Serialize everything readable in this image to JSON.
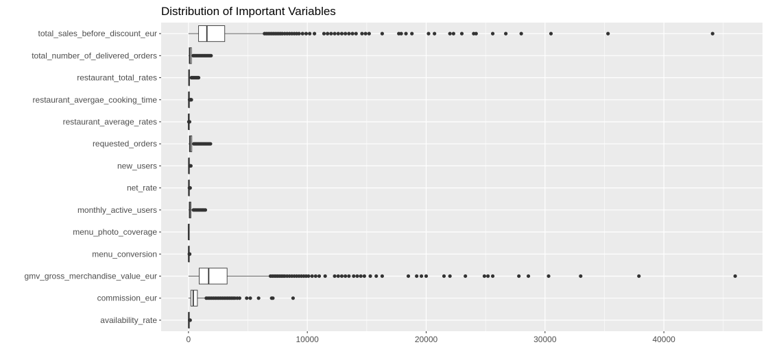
{
  "chart_data": {
    "type": "boxplot",
    "title": "Distribution of Important Variables",
    "xlabel": "",
    "ylabel": "",
    "xlim": [
      -2300,
      48300
    ],
    "xticks": [
      0,
      10000,
      20000,
      30000,
      40000
    ],
    "xtick_labels": [
      "0",
      "10000",
      "20000",
      "30000",
      "40000"
    ],
    "grid": true,
    "legend": "none",
    "colors": {
      "panel": "#ebebeb",
      "grid": "#ffffff",
      "box": "#333333",
      "fill": "#ffffff",
      "outlier": "#333333",
      "title": "#000000",
      "tick_label": "#4d4d4d"
    },
    "categories": [
      "total_sales_before_discount_eur",
      "total_number_of_delivered_orders",
      "restaurant_total_rates",
      "restaurant_avergae_cooking_time",
      "restaurant_average_rates",
      "requested_orders",
      "new_users",
      "net_rate",
      "monthly_active_users",
      "menu_photo_coverage",
      "menu_conversion",
      "gmv_gross_merchandise_value_eur",
      "commission_eur",
      "availability_rate"
    ],
    "boxes": [
      {
        "min": 0,
        "q1": 850,
        "median": 1550,
        "q3": 3050,
        "max": 6300,
        "outliers": [
          6400,
          6550,
          6700,
          6850,
          7000,
          7150,
          7300,
          7450,
          7600,
          7750,
          7900,
          8100,
          8300,
          8500,
          8700,
          8900,
          9100,
          9300,
          9600,
          9900,
          10200,
          10600,
          11400,
          11700,
          12000,
          12300,
          12600,
          12900,
          13200,
          13500,
          13800,
          14100,
          14600,
          14900,
          15200,
          16300,
          17700,
          17900,
          18300,
          18800,
          20200,
          20700,
          22000,
          22300,
          23000,
          24000,
          24200,
          25600,
          26700,
          28000,
          30500,
          35300,
          44100
        ]
      },
      {
        "min": 0,
        "q1": 60,
        "median": 120,
        "q3": 250,
        "max": 350,
        "outliers": [
          400,
          500,
          600,
          700,
          800,
          900,
          1000,
          1100,
          1200,
          1300,
          1400,
          1500,
          1600,
          1700,
          1800,
          1900
        ]
      },
      {
        "min": 0,
        "q1": 15,
        "median": 40,
        "q3": 90,
        "max": 200,
        "outliers": [
          250,
          300,
          350,
          400,
          450,
          500,
          550,
          600,
          650,
          700,
          750,
          800,
          850
        ]
      },
      {
        "min": 0,
        "q1": 10,
        "median": 20,
        "q3": 30,
        "max": 50,
        "outliers": [
          90,
          140,
          190,
          240
        ]
      },
      {
        "min": 0,
        "q1": 3,
        "median": 4,
        "q3": 4.5,
        "max": 5,
        "outliers": [
          30,
          60,
          90
        ]
      },
      {
        "min": 0,
        "q1": 80,
        "median": 150,
        "q3": 280,
        "max": 380,
        "outliers": [
          450,
          550,
          650,
          750,
          850,
          950,
          1050,
          1150,
          1250,
          1350,
          1450,
          1550,
          1650,
          1750,
          1850
        ]
      },
      {
        "min": 0,
        "q1": 10,
        "median": 20,
        "q3": 40,
        "max": 80,
        "outliers": [
          120,
          160,
          200
        ]
      },
      {
        "min": 0,
        "q1": 10,
        "median": 20,
        "q3": 30,
        "max": 50,
        "outliers": [
          80,
          110,
          140
        ]
      },
      {
        "min": 0,
        "q1": 60,
        "median": 110,
        "q3": 200,
        "max": 350,
        "outliers": [
          420,
          520,
          620,
          720,
          820,
          920,
          1020,
          1120,
          1220,
          1320,
          1420
        ]
      },
      {
        "min": 0,
        "q1": 0.3,
        "median": 0.6,
        "q3": 0.8,
        "max": 1,
        "outliers": []
      },
      {
        "min": 0,
        "q1": 5,
        "median": 10,
        "q3": 20,
        "max": 40,
        "outliers": [
          70,
          100
        ]
      },
      {
        "min": 0,
        "q1": 900,
        "median": 1700,
        "q3": 3250,
        "max": 6800,
        "outliers": [
          6900,
          7050,
          7200,
          7350,
          7500,
          7650,
          7800,
          7950,
          8100,
          8300,
          8500,
          8700,
          8900,
          9100,
          9300,
          9500,
          9700,
          9900,
          10100,
          10400,
          10700,
          11000,
          11500,
          12300,
          12600,
          12900,
          13200,
          13500,
          13900,
          14200,
          14500,
          14800,
          15300,
          15800,
          16300,
          18500,
          19200,
          19600,
          20000,
          21500,
          22000,
          23300,
          24900,
          25200,
          25600,
          27800,
          28600,
          30300,
          33000,
          37900,
          46000
        ]
      },
      {
        "min": 0,
        "q1": 200,
        "median": 400,
        "q3": 750,
        "max": 1400,
        "outliers": [
          1500,
          1650,
          1800,
          1950,
          2100,
          2250,
          2400,
          2550,
          2700,
          2850,
          3000,
          3150,
          3300,
          3450,
          3600,
          3750,
          3900,
          4100,
          4300,
          4900,
          5200,
          5900,
          7000,
          7100,
          8800
        ]
      },
      {
        "min": 0,
        "q1": 5,
        "median": 15,
        "q3": 30,
        "max": 60,
        "outliers": [
          100,
          140
        ]
      }
    ]
  }
}
